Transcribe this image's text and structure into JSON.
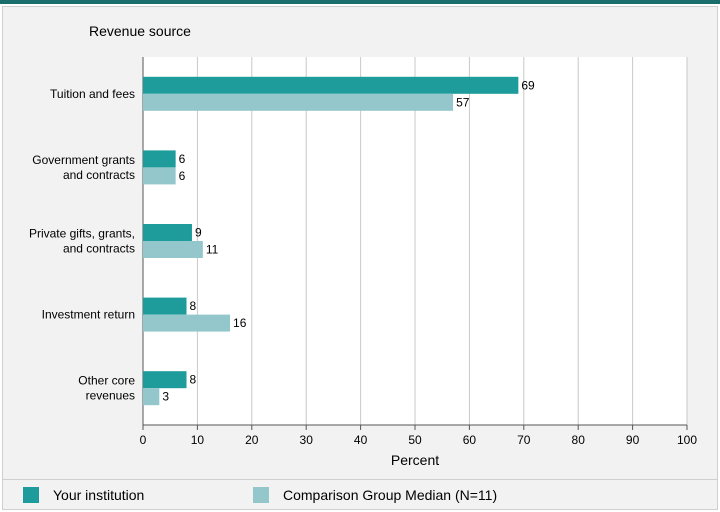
{
  "chart_data": {
    "type": "bar",
    "orientation": "horizontal",
    "category_axis_title": "Revenue source",
    "categories": [
      [
        "Tuition and fees"
      ],
      [
        "Government grants",
        "and contracts"
      ],
      [
        "Private gifts, grants,",
        "and contracts"
      ],
      [
        "Investment return"
      ],
      [
        "Other core",
        "revenues"
      ]
    ],
    "series": [
      {
        "name": "Your institution",
        "color": "#1e9b9b",
        "values": [
          69,
          6,
          9,
          8,
          8
        ]
      },
      {
        "name": "Comparison Group Median (N=11)",
        "color": "#94c7cc",
        "values": [
          57,
          6,
          11,
          16,
          3
        ]
      }
    ],
    "xlabel": "Percent",
    "xlim": [
      0,
      100
    ],
    "xticks": [
      0,
      10,
      20,
      30,
      40,
      50,
      60,
      70,
      80,
      90,
      100
    ],
    "grid": true,
    "legend_position": "bottom"
  }
}
